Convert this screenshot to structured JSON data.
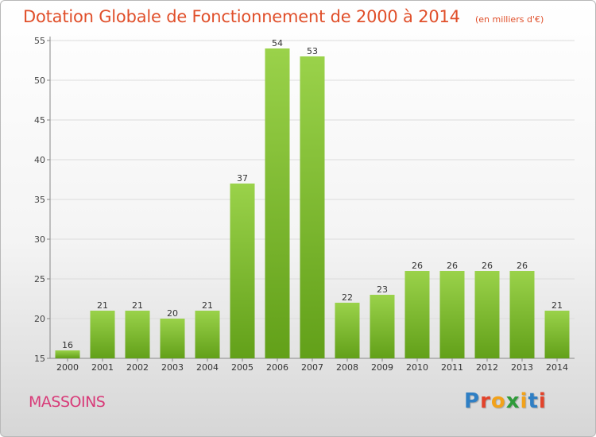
{
  "header": {
    "title": "Dotation Globale de Fonctionnement de 2000 à 2014",
    "unit": "(en milliers d'€)"
  },
  "footer": {
    "commune": "MASSOINS",
    "logo_text": "Proxiti"
  },
  "colors": {
    "title": "#e04f2a",
    "commune": "#d83a78",
    "bar_top": "#9ad24a",
    "bar_bottom": "#62a019"
  },
  "chart_data": {
    "type": "bar",
    "title": "Dotation Globale de Fonctionnement de 2000 à 2014",
    "subtitle": "(en milliers d'€)",
    "categories": [
      "2000",
      "2001",
      "2002",
      "2003",
      "2004",
      "2005",
      "2006",
      "2007",
      "2008",
      "2009",
      "2010",
      "2011",
      "2012",
      "2013",
      "2014"
    ],
    "values": [
      16,
      21,
      21,
      20,
      21,
      37,
      54,
      53,
      22,
      23,
      26,
      26,
      26,
      26,
      21
    ],
    "ylim": [
      15,
      55
    ],
    "yticks": [
      15,
      20,
      25,
      30,
      35,
      40,
      45,
      50,
      55
    ],
    "grid": true,
    "data_labels": true
  }
}
